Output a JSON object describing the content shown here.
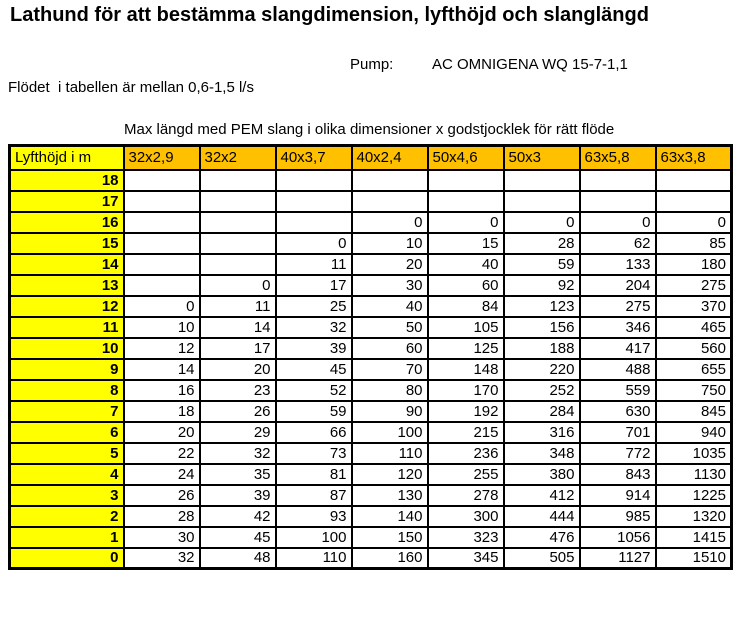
{
  "page": {
    "title": "Lathund för att bestämma slangdimension, lyfthöjd och slanglängd",
    "pump_label": "Pump:",
    "pump_value": "AC OMNIGENA WQ 15-7-1,1",
    "flow_note": "Flödet  i tabellen är mellan 0,6-1,5 l/s",
    "table_caption": "Max längd med PEM slang i olika dimensioner x godstjocklek för rätt flöde"
  },
  "table": {
    "row_header": "Lyfthöjd i m",
    "columns": [
      "32x2,9",
      "32x2",
      "40x3,7",
      "40x2,4",
      "50x4,6",
      "50x3",
      "63x5,8",
      "63x3,8"
    ],
    "rows": [
      {
        "lift": "18",
        "values": [
          "",
          "",
          "",
          "",
          "",
          "",
          "",
          ""
        ]
      },
      {
        "lift": "17",
        "values": [
          "",
          "",
          "",
          "",
          "",
          "",
          "",
          ""
        ]
      },
      {
        "lift": "16",
        "values": [
          "",
          "",
          "",
          "0",
          "0",
          "0",
          "0",
          "0"
        ]
      },
      {
        "lift": "15",
        "values": [
          "",
          "",
          "0",
          "10",
          "15",
          "28",
          "62",
          "85"
        ]
      },
      {
        "lift": "14",
        "values": [
          "",
          "",
          "11",
          "20",
          "40",
          "59",
          "133",
          "180"
        ]
      },
      {
        "lift": "13",
        "values": [
          "",
          "0",
          "17",
          "30",
          "60",
          "92",
          "204",
          "275"
        ]
      },
      {
        "lift": "12",
        "values": [
          "0",
          "11",
          "25",
          "40",
          "84",
          "123",
          "275",
          "370"
        ]
      },
      {
        "lift": "11",
        "values": [
          "10",
          "14",
          "32",
          "50",
          "105",
          "156",
          "346",
          "465"
        ]
      },
      {
        "lift": "10",
        "values": [
          "12",
          "17",
          "39",
          "60",
          "125",
          "188",
          "417",
          "560"
        ]
      },
      {
        "lift": "9",
        "values": [
          "14",
          "20",
          "45",
          "70",
          "148",
          "220",
          "488",
          "655"
        ]
      },
      {
        "lift": "8",
        "values": [
          "16",
          "23",
          "52",
          "80",
          "170",
          "252",
          "559",
          "750"
        ]
      },
      {
        "lift": "7",
        "values": [
          "18",
          "26",
          "59",
          "90",
          "192",
          "284",
          "630",
          "845"
        ]
      },
      {
        "lift": "6",
        "values": [
          "20",
          "29",
          "66",
          "100",
          "215",
          "316",
          "701",
          "940"
        ]
      },
      {
        "lift": "5",
        "values": [
          "22",
          "32",
          "73",
          "110",
          "236",
          "348",
          "772",
          "1035"
        ]
      },
      {
        "lift": "4",
        "values": [
          "24",
          "35",
          "81",
          "120",
          "255",
          "380",
          "843",
          "1130"
        ]
      },
      {
        "lift": "3",
        "values": [
          "26",
          "39",
          "87",
          "130",
          "278",
          "412",
          "914",
          "1225"
        ]
      },
      {
        "lift": "2",
        "values": [
          "28",
          "42",
          "93",
          "140",
          "300",
          "444",
          "985",
          "1320"
        ]
      },
      {
        "lift": "1",
        "values": [
          "30",
          "45",
          "100",
          "150",
          "323",
          "476",
          "1056",
          "1415"
        ]
      },
      {
        "lift": "0",
        "values": [
          "32",
          "48",
          "110",
          "160",
          "345",
          "505",
          "1127",
          "1510"
        ]
      }
    ],
    "colors": {
      "header_orange": "#FFC000",
      "row_label_yellow": "#FFFF00",
      "border_black": "#000000"
    }
  }
}
